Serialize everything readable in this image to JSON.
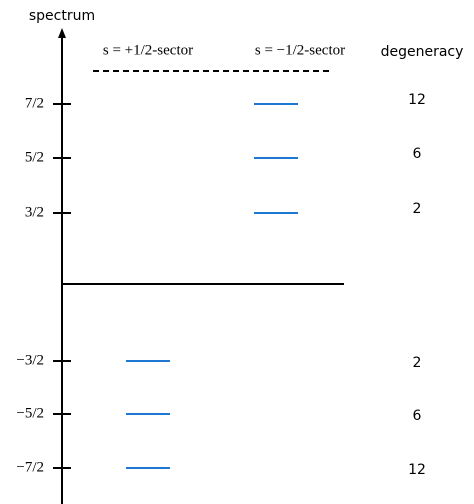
{
  "axis_label": "spectrum",
  "sectors": [
    "s = +1/2-sector",
    "s = −1/2-sector"
  ],
  "degeneracy_header": "degeneracy",
  "levels": [
    {
      "label": "7/2",
      "degeneracy": "12"
    },
    {
      "label": "5/2",
      "degeneracy": "6"
    },
    {
      "label": "3/2",
      "degeneracy": "2"
    },
    {
      "label": "−3/2",
      "degeneracy": "2"
    },
    {
      "label": "−5/2",
      "degeneracy": "6"
    },
    {
      "label": "−7/2",
      "degeneracy": "12"
    }
  ]
}
